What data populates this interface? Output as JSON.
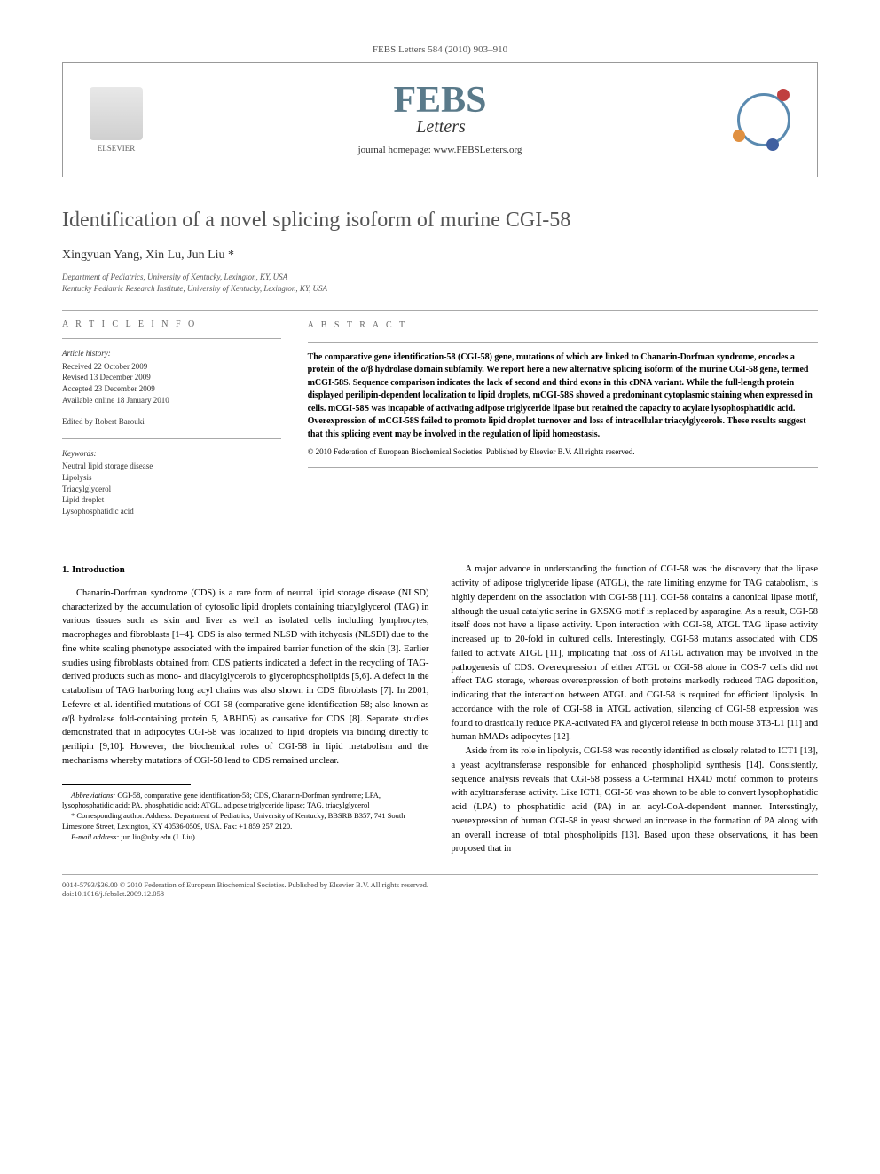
{
  "journal_ref": "FEBS Letters 584 (2010) 903–910",
  "publisher": "ELSEVIER",
  "logo_main": "FEBS",
  "logo_sub": "Letters",
  "homepage_label": "journal homepage:",
  "homepage_url": "www.FEBSLetters.org",
  "title": "Identification of a novel splicing isoform of murine CGI-58",
  "authors": "Xingyuan Yang, Xin Lu, Jun Liu *",
  "affiliations": [
    "Department of Pediatrics, University of Kentucky, Lexington, KY, USA",
    "Kentucky Pediatric Research Institute, University of Kentucky, Lexington, KY, USA"
  ],
  "info": {
    "heading": "A R T I C L E   I N F O",
    "history_label": "Article history:",
    "history": [
      "Received 22 October 2009",
      "Revised 13 December 2009",
      "Accepted 23 December 2009",
      "Available online 18 January 2010"
    ],
    "editor": "Edited by Robert Barouki",
    "keywords_label": "Keywords:",
    "keywords": [
      "Neutral lipid storage disease",
      "Lipolysis",
      "Triacylglycerol",
      "Lipid droplet",
      "Lysophosphatidic acid"
    ]
  },
  "abstract": {
    "heading": "A B S T R A C T",
    "text": "The comparative gene identification-58 (CGI-58) gene, mutations of which are linked to Chanarin-Dorfman syndrome, encodes a protein of the α/β hydrolase domain subfamily. We report here a new alternative splicing isoform of the murine CGI-58 gene, termed mCGI-58S. Sequence comparison indicates the lack of second and third exons in this cDNA variant. While the full-length protein displayed perilipin-dependent localization to lipid droplets, mCGI-58S showed a predominant cytoplasmic staining when expressed in cells. mCGI-58S was incapable of activating adipose triglyceride lipase but retained the capacity to acylate lysophosphatidic acid. Overexpression of mCGI-58S failed to promote lipid droplet turnover and loss of intracellular triacylglycerols. These results suggest that this splicing event may be involved in the regulation of lipid homeostasis.",
    "copyright": "© 2010 Federation of European Biochemical Societies. Published by Elsevier B.V. All rights reserved."
  },
  "section1_heading": "1. Introduction",
  "col_left_para": "Chanarin-Dorfman syndrome (CDS) is a rare form of neutral lipid storage disease (NLSD) characterized by the accumulation of cytosolic lipid droplets containing triacylglycerol (TAG) in various tissues such as skin and liver as well as isolated cells including lymphocytes, macrophages and fibroblasts [1–4]. CDS is also termed NLSD with itchyosis (NLSDI) due to the fine white scaling phenotype associated with the impaired barrier function of the skin [3]. Earlier studies using fibroblasts obtained from CDS patients indicated a defect in the recycling of TAG-derived products such as mono- and diacylglycerols to glycerophospholipids [5,6]. A defect in the catabolism of TAG harboring long acyl chains was also shown in CDS fibroblasts [7]. In 2001, Lefevre et al. identified mutations of CGI-58 (comparative gene identification-58; also known as α/β hydrolase fold-containing protein 5, ABHD5) as causative for CDS [8]. Separate studies demonstrated that in adipocytes CGI-58 was localized to lipid droplets via binding directly to perilipin [9,10]. However, the biochemical roles of CGI-58 in lipid metabolism and the mechanisms whereby mutations of CGI-58 lead to CDS remained unclear.",
  "col_right_para1": "A major advance in understanding the function of CGI-58 was the discovery that the lipase activity of adipose triglyceride lipase (ATGL), the rate limiting enzyme for TAG catabolism, is highly dependent on the association with CGI-58 [11]. CGI-58 contains a canonical lipase motif, although the usual catalytic serine in GXSXG motif is replaced by asparagine. As a result, CGI-58 itself does not have a lipase activity. Upon interaction with CGI-58, ATGL TAG lipase activity increased up to 20-fold in cultured cells. Interestingly, CGI-58 mutants associated with CDS failed to activate ATGL [11], implicating that loss of ATGL activation may be involved in the pathogenesis of CDS. Overexpression of either ATGL or CGI-58 alone in COS-7 cells did not affect TAG storage, whereas overexpression of both proteins markedly reduced TAG deposition, indicating that the interaction between ATGL and CGI-58 is required for efficient lipolysis. In accordance with the role of CGI-58 in ATGL activation, silencing of CGI-58 expression was found to drastically reduce PKA-activated FA and glycerol release in both mouse 3T3-L1 [11] and human hMADs adipocytes [12].",
  "col_right_para2": "Aside from its role in lipolysis, CGI-58 was recently identified as closely related to ICT1 [13], a yeast acyltransferase responsible for enhanced phospholipid synthesis [14]. Consistently, sequence analysis reveals that CGI-58 possess a C-terminal HX4D motif common to proteins with acyltransferase activity. Like ICT1, CGI-58 was shown to be able to convert lysophophatidic acid (LPA) to phosphatidic acid (PA) in an acyl-CoA-dependent manner. Interestingly, overexpression of human CGI-58 in yeast showed an increase in the formation of PA along with an overall increase of total phospholipids [13]. Based upon these observations, it has been proposed that in",
  "footnotes": {
    "abbr_label": "Abbreviations:",
    "abbr": "CGI-58, comparative gene identification-58; CDS, Chanarin-Dorfman syndrome; LPA, lysophosphatidic acid; PA, phosphatidic acid; ATGL, adipose triglyceride lipase; TAG, triacylglycerol",
    "corr_label": "* Corresponding author.",
    "corr": "Address: Department of Pediatrics, University of Kentucky, BBSRB B357, 741 South Limestone Street, Lexington, KY 40536-0509, USA. Fax: +1 859 257 2120.",
    "email_label": "E-mail address:",
    "email": "jun.liu@uky.edu (J. Liu)."
  },
  "footer": {
    "line1": "0014-5793/$36.00 © 2010 Federation of European Biochemical Societies. Published by Elsevier B.V. All rights reserved.",
    "line2": "doi:10.1016/j.febslet.2009.12.058"
  },
  "colors": {
    "title_color": "#555555",
    "ref_color": "#3060a0",
    "febs_color": "#5a7a8a",
    "border_color": "#999999"
  }
}
